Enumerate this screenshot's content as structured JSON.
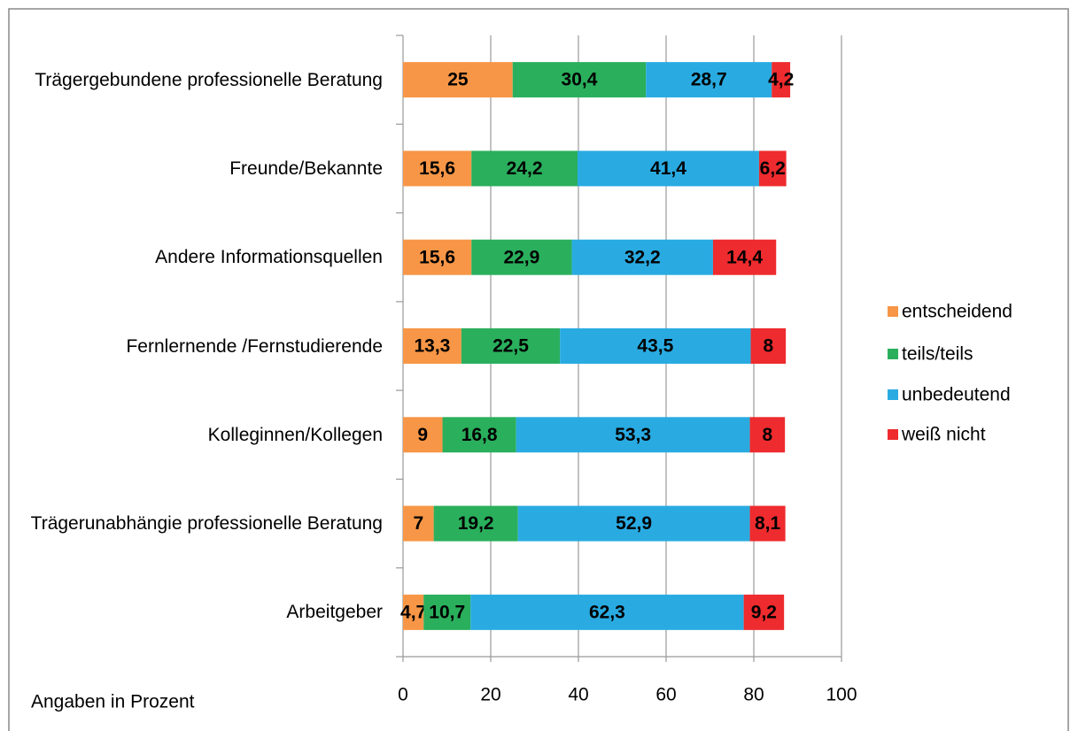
{
  "chart_data": {
    "type": "stacked-bar-horizontal",
    "categories": [
      "Trägergebundene professionelle Beratung",
      "Freunde/Bekannte",
      "Andere Informationsquellen",
      "Fernlernende /Fernstudierende",
      "Kolleginnen/Kollegen",
      "Trägerunabhängie professionelle Beratung",
      "Arbeitgeber"
    ],
    "series": [
      {
        "name": "entscheidend",
        "color": "#f79646",
        "values": [
          25,
          15.6,
          15.6,
          13.3,
          9,
          7,
          4.7
        ],
        "value_labels": [
          "25",
          "15,6",
          "15,6",
          "13,3",
          "9",
          "7",
          "4,7"
        ]
      },
      {
        "name": "teils/teils",
        "color": "#2aaf5c",
        "values": [
          30.4,
          24.2,
          22.9,
          22.5,
          16.8,
          19.2,
          10.7
        ],
        "value_labels": [
          "30,4",
          "24,2",
          "22,9",
          "22,5",
          "16,8",
          "19,2",
          "10,7"
        ]
      },
      {
        "name": "unbedeutend",
        "color": "#29abe2",
        "values": [
          28.7,
          41.4,
          32.2,
          43.5,
          53.3,
          52.9,
          62.3
        ],
        "value_labels": [
          "28,7",
          "41,4",
          "32,2",
          "43,5",
          "53,3",
          "52,9",
          "62,3"
        ]
      },
      {
        "name": "weiß nicht",
        "color": "#ee2b2e",
        "values": [
          4.2,
          6.2,
          14.4,
          8,
          8,
          8.1,
          9.2
        ],
        "value_labels": [
          "4,2",
          "6,2",
          "14,4",
          "8",
          "8",
          "8,1",
          "9,2"
        ]
      }
    ],
    "xlim": [
      0,
      100
    ],
    "xticks": [
      0,
      20,
      40,
      60,
      80,
      100
    ],
    "grid": true,
    "legend": "right",
    "annotation": "Angaben in Prozent"
  }
}
